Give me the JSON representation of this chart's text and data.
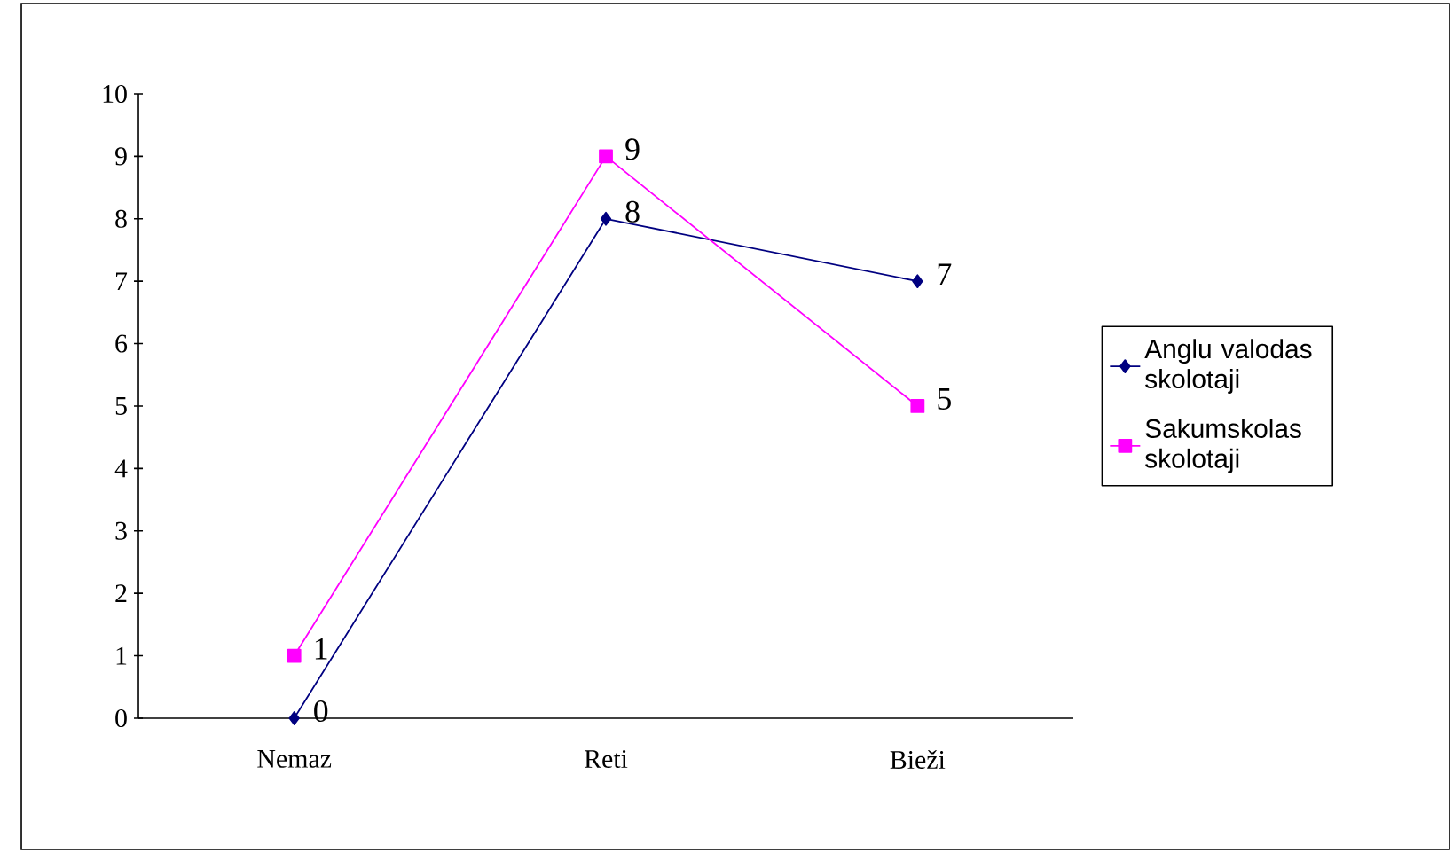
{
  "chart_data": {
    "type": "line",
    "categories": [
      "Nemaz",
      "Reti",
      "Bieži"
    ],
    "series": [
      {
        "name": "Anglu valodas skolotaji",
        "color": "#000080",
        "values": [
          0,
          8,
          7
        ],
        "marker": "diamond"
      },
      {
        "name": "Sakumskolas skolotaji",
        "color": "#ff00ff",
        "values": [
          1,
          9,
          5
        ],
        "marker": "square"
      }
    ],
    "ylim": [
      0,
      10
    ],
    "yticks": [
      0,
      1,
      2,
      3,
      4,
      5,
      6,
      7,
      8,
      9,
      10
    ],
    "data_labels": true,
    "legend": "right",
    "grid": false
  }
}
